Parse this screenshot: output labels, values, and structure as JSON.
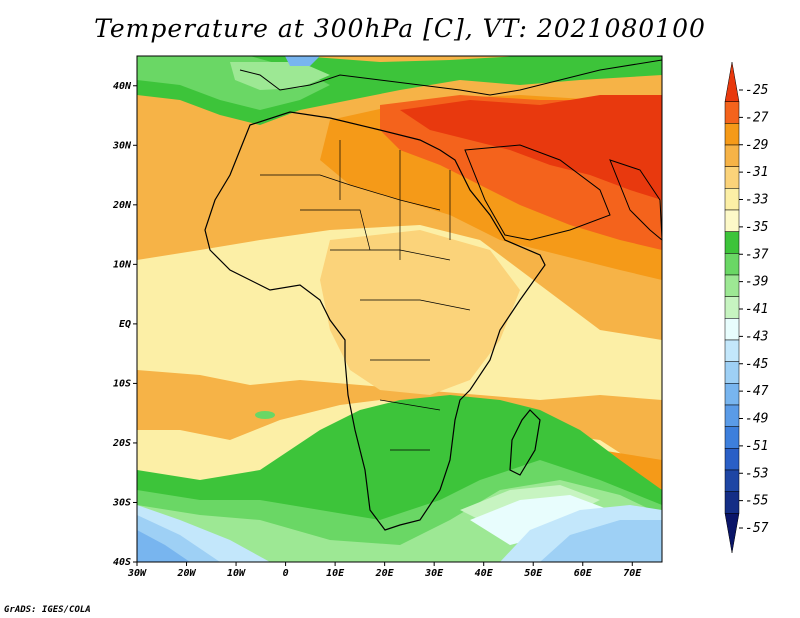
{
  "title": "Temperature at 300hPa [C], VT: 2021080100",
  "credit": "GrADS: IGES/COLA",
  "map": {
    "lon_range": [
      -30,
      76
    ],
    "lat_range": [
      -40,
      45
    ],
    "lon_ticks": [
      "30W",
      "20W",
      "10W",
      "0",
      "10E",
      "20E",
      "30E",
      "40E",
      "50E",
      "60E",
      "70E"
    ],
    "lat_ticks": [
      "40S",
      "30S",
      "20S",
      "10S",
      "EQ",
      "10N",
      "20N",
      "30N",
      "40N"
    ]
  },
  "colorbar": {
    "labels": [
      "-25",
      "-27",
      "-29",
      "-31",
      "-33",
      "-35",
      "-37",
      "-39",
      "-41",
      "-43",
      "-45",
      "-47",
      "-49",
      "-51",
      "-53",
      "-55",
      "-57"
    ],
    "colors": [
      "#e8390e",
      "#f4631c",
      "#f59a18",
      "#f6b347",
      "#fbd37a",
      "#fcefa6",
      "#fdf9c8",
      "#3dc43a",
      "#6ad765",
      "#9de894",
      "#c7f4c1",
      "#e8fdfd",
      "#c3e7fb",
      "#9ed0f5",
      "#78b5ef",
      "#5a9be7",
      "#3d7fdc",
      "#2a5fc6",
      "#1e46a4",
      "#142e86",
      "#0a1568"
    ]
  },
  "regions": [
    {
      "name": "hot-middle-east",
      "color": "#e8390e"
    },
    {
      "name": "warm-sahara",
      "color": "#f4631c"
    },
    {
      "name": "orange-belt",
      "color": "#f59a18"
    },
    {
      "name": "light-orange",
      "color": "#f6b347"
    },
    {
      "name": "yellow-tropics",
      "color": "#fbd37a"
    },
    {
      "name": "pale-yellow",
      "color": "#fcefa6"
    },
    {
      "name": "green-south",
      "color": "#3dc43a"
    },
    {
      "name": "blue-south",
      "color": "#78b5ef"
    }
  ]
}
